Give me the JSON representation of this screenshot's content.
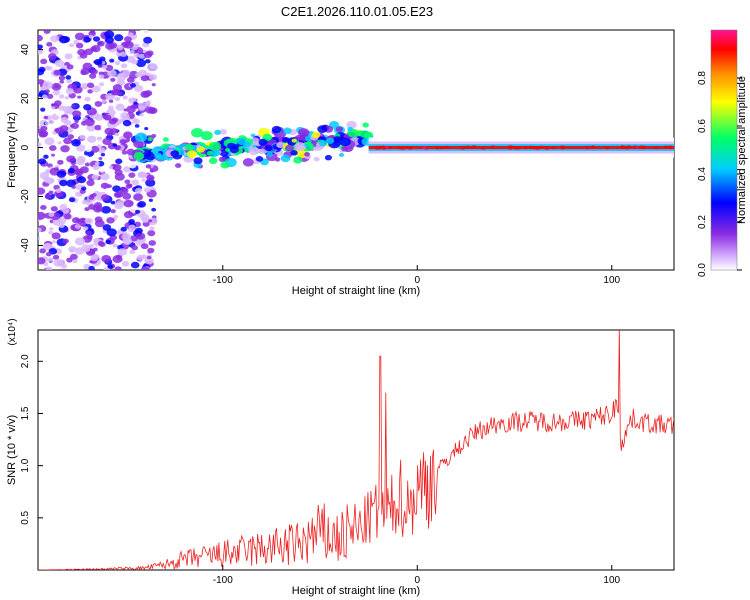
{
  "chart_data": [
    {
      "type": "heatmap",
      "title": "C2E1.2026.110.01.05.E23",
      "xlabel": "Height of straight line (km)",
      "ylabel": "Frequency (Hz)",
      "xlim": [
        -195,
        132
      ],
      "ylim": [
        -50,
        48
      ],
      "xticks": [
        -100,
        0,
        100
      ],
      "xtick_labels": [
        "-100",
        "0",
        "100"
      ],
      "yticks": [
        -40,
        -20,
        0,
        20,
        40
      ],
      "ytick_labels": [
        "-40",
        "-20",
        "0",
        "20",
        "40"
      ],
      "colorbar": {
        "label": "Normalized spectral amplitude",
        "range": [
          0,
          1
        ],
        "ticks": [
          0.0,
          0.2,
          0.4,
          0.6,
          0.8
        ],
        "tick_labels": [
          "0.0",
          "0.2",
          "0.4",
          "0.6",
          "0.8"
        ],
        "colors": [
          "#ffffff",
          "#d9b8ff",
          "#8a2be2",
          "#0000ff",
          "#00ccff",
          "#00ff66",
          "#ffff00",
          "#ff8c00",
          "#ff0000",
          "#ff1493"
        ]
      },
      "segments": [
        {
          "name": "noise scatter",
          "x_range": [
            -195,
            -135
          ],
          "freq_range": [
            -50,
            48
          ],
          "amplitude": 0.15
        },
        {
          "name": "rising track",
          "x_range": [
            -145,
            -25
          ],
          "freq_start": -3,
          "freq_end": 4,
          "amplitude": 0.45
        },
        {
          "name": "main line",
          "x_range": [
            -25,
            132
          ],
          "freq": 0,
          "amplitude": 0.85
        }
      ]
    },
    {
      "type": "line",
      "xlabel": "Height of straight line (km)",
      "ylabel": "SNR (10 * v/v)",
      "exponent_label": "(x10⁴)",
      "xlim": [
        -195,
        132
      ],
      "ylim": [
        0,
        2.3
      ],
      "xticks": [
        -100,
        0,
        100
      ],
      "xtick_labels": [
        "-100",
        "0",
        "100"
      ],
      "yticks": [
        0.5,
        1.0,
        1.5,
        2.0
      ],
      "ytick_labels": [
        "0.5",
        "1.0",
        "1.5",
        "2.0"
      ],
      "color": "#ee2222",
      "series": [
        {
          "name": "SNR",
          "x": [
            -195,
            -160,
            -140,
            -130,
            -120,
            -100,
            -80,
            -60,
            -50,
            -40,
            -30,
            -22,
            -18,
            -14,
            -10,
            -5,
            0,
            10,
            20,
            30,
            40,
            50,
            60,
            70,
            80,
            90,
            100,
            103,
            105,
            110,
            120,
            132
          ],
          "y": [
            0.0,
            0.01,
            0.02,
            0.05,
            0.1,
            0.15,
            0.2,
            0.25,
            0.35,
            0.3,
            0.4,
            0.55,
            0.5,
            0.55,
            0.75,
            0.6,
            0.75,
            0.95,
            1.15,
            1.32,
            1.4,
            1.42,
            1.43,
            1.42,
            1.43,
            1.45,
            1.5,
            1.6,
            1.2,
            1.45,
            1.4,
            1.38
          ]
        }
      ],
      "annotations": [
        {
          "label": "spike",
          "x": -19,
          "y": 2.05
        },
        {
          "label": "spike",
          "x": -16,
          "y": 1.7
        },
        {
          "label": "spike",
          "x": 104,
          "y": 2.35
        }
      ]
    }
  ]
}
